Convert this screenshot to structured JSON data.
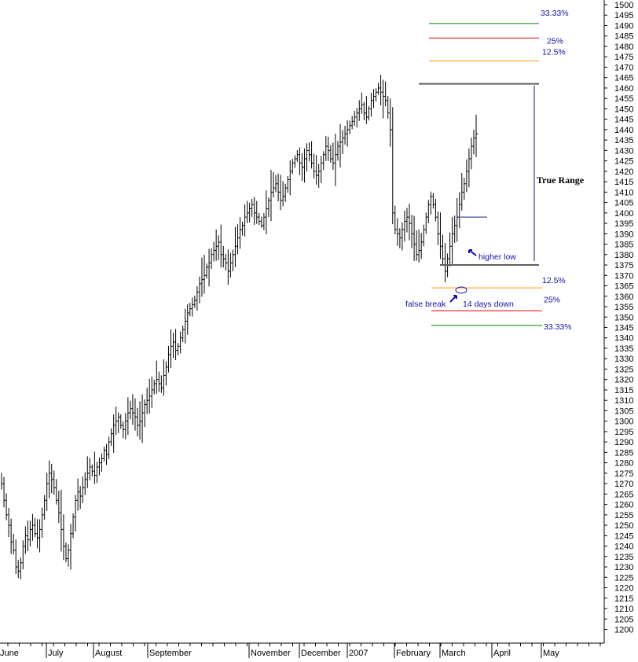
{
  "chart_data": {
    "type": "ohlc",
    "title": "",
    "xlabel": "",
    "ylabel": "",
    "y_axis_position": "right",
    "ylim": [
      1197,
      1501
    ],
    "ytick_values": [
      1200,
      1205,
      1210,
      1215,
      1220,
      1225,
      1230,
      1235,
      1240,
      1245,
      1250,
      1255,
      1260,
      1265,
      1270,
      1275,
      1280,
      1285,
      1290,
      1295,
      1300,
      1305,
      1310,
      1315,
      1320,
      1325,
      1330,
      1335,
      1340,
      1345,
      1350,
      1355,
      1360,
      1365,
      1370,
      1375,
      1380,
      1385,
      1390,
      1395,
      1400,
      1405,
      1410,
      1415,
      1420,
      1425,
      1430,
      1435,
      1440,
      1445,
      1450,
      1455,
      1460,
      1465,
      1470,
      1475,
      1480,
      1485,
      1490,
      1495,
      1500
    ],
    "month_labels": [
      "June",
      "July",
      "August",
      "September",
      "November",
      "December",
      "2007",
      "February",
      "March",
      "April",
      "May"
    ],
    "month_start_day_index": [
      0,
      21,
      40,
      63,
      106,
      127,
      147,
      167,
      185,
      207,
      226
    ],
    "bars_per_day": "daily",
    "series": [
      {
        "values_ohlc_description": "daily high/low/close derived from close path",
        "close": [
          1270,
          1262,
          1255,
          1250,
          1242,
          1238,
          1230,
          1228,
          1232,
          1240,
          1245,
          1243,
          1248,
          1250,
          1246,
          1244,
          1248,
          1255,
          1262,
          1270,
          1275,
          1272,
          1268,
          1262,
          1256,
          1248,
          1240,
          1234,
          1238,
          1246,
          1254,
          1262,
          1266,
          1264,
          1268,
          1272,
          1275,
          1278,
          1276,
          1274,
          1278,
          1280,
          1282,
          1286,
          1284,
          1290,
          1294,
          1298,
          1300,
          1302,
          1298,
          1296,
          1300,
          1304,
          1306,
          1304,
          1302,
          1298,
          1300,
          1304,
          1308,
          1310,
          1312,
          1315,
          1318,
          1320,
          1318,
          1316,
          1322,
          1326,
          1332,
          1336,
          1338,
          1334,
          1336,
          1340,
          1344,
          1348,
          1352,
          1354,
          1356,
          1358,
          1362,
          1366,
          1368,
          1370,
          1374,
          1376,
          1380,
          1382,
          1384,
          1386,
          1380,
          1378,
          1376,
          1372,
          1376,
          1380,
          1384,
          1388,
          1392,
          1394,
          1398,
          1400,
          1402,
          1404,
          1400,
          1398,
          1396,
          1394,
          1398,
          1402,
          1406,
          1410,
          1412,
          1414,
          1410,
          1406,
          1408,
          1412,
          1416,
          1420,
          1424,
          1426,
          1428,
          1424,
          1422,
          1426,
          1430,
          1428,
          1424,
          1420,
          1418,
          1420,
          1424,
          1428,
          1432,
          1430,
          1426,
          1424,
          1428,
          1432,
          1434,
          1436,
          1438,
          1440,
          1442,
          1444,
          1446,
          1448,
          1450,
          1452,
          1448,
          1446,
          1450,
          1454,
          1456,
          1458,
          1460,
          1458,
          1456,
          1454,
          1448,
          1440,
          1400,
          1392,
          1390,
          1388,
          1392,
          1396,
          1398,
          1395,
          1390,
          1385,
          1380,
          1382,
          1386,
          1392,
          1398,
          1404,
          1408,
          1404,
          1398,
          1390,
          1384,
          1378,
          1372,
          1378,
          1384,
          1390,
          1394,
          1398,
          1404,
          1410,
          1414,
          1420,
          1426,
          1432,
          1436,
          1438
        ]
      }
    ],
    "annotations": {
      "true_range_label": "True Range",
      "higher_low_label": "higher low",
      "false_break_label": "false break",
      "days_down_label": "14 days down",
      "range_top": 1462,
      "range_bottom": 1375,
      "levels_above": [
        {
          "label": "33.33%",
          "value": 1491,
          "color": "#008000"
        },
        {
          "label": "25%",
          "value": 1484,
          "color": "#e00000"
        },
        {
          "label": "12.5%",
          "value": 1473,
          "color": "#ff9900"
        }
      ],
      "levels_below": [
        {
          "label": "12.5%",
          "value": 1364,
          "color": "#ff9900"
        },
        {
          "label": "25%",
          "value": 1353,
          "color": "#e00000"
        },
        {
          "label": "33.33%",
          "value": 1346,
          "color": "#008000"
        }
      ]
    },
    "colors": {
      "bars": "#000000",
      "range_lines": "#606060",
      "annotation": "#1010a8",
      "axis": "#000000"
    }
  }
}
